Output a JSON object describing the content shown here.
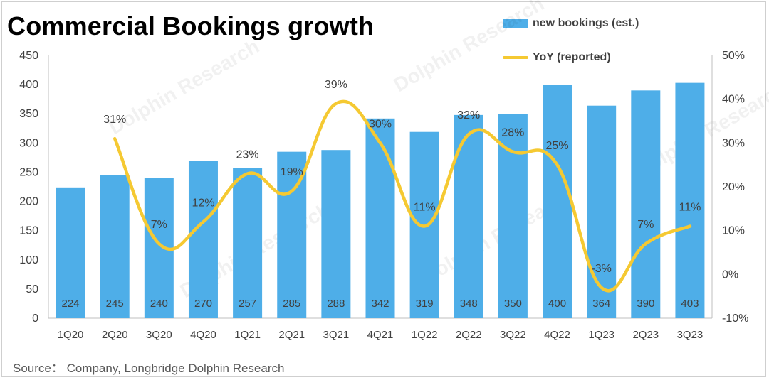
{
  "title": "Commercial Bookings growth",
  "source": "Source：  Company, Longbridge Dolphin Research",
  "legend": {
    "bar_label": "new bookings (est.)",
    "line_label": "YoY  (reported)"
  },
  "colors": {
    "bar": "#4eaee8",
    "line": "#f5c932"
  },
  "chart_data": {
    "type": "bar",
    "categories": [
      "1Q20",
      "2Q20",
      "3Q20",
      "4Q20",
      "1Q21",
      "2Q21",
      "3Q21",
      "4Q21",
      "1Q22",
      "2Q22",
      "3Q22",
      "4Q22",
      "1Q23",
      "2Q23",
      "3Q23"
    ],
    "series": [
      {
        "name": "new bookings (est.)",
        "type": "bar",
        "axis": "left",
        "values": [
          224,
          245,
          240,
          270,
          257,
          285,
          288,
          342,
          319,
          348,
          350,
          400,
          364,
          390,
          403
        ],
        "labels": [
          "224",
          "245",
          "240",
          "270",
          "257",
          "285",
          "288",
          "342",
          "319",
          "348",
          "350",
          "400",
          "364",
          "390",
          "403"
        ]
      },
      {
        "name": "YoY  (reported)",
        "type": "line",
        "axis": "right",
        "values": [
          null,
          31,
          7,
          12,
          23,
          19,
          39,
          30,
          11,
          32,
          28,
          25,
          -3,
          7,
          11
        ],
        "labels": [
          "",
          "31%",
          "7%",
          "12%",
          "23%",
          "19%",
          "39%",
          "30%",
          "11%",
          "32%",
          "28%",
          "25%",
          "-3%",
          "7%",
          "11%"
        ]
      }
    ],
    "y_left": {
      "ylim": [
        0,
        450
      ],
      "ticks": [
        0,
        50,
        100,
        150,
        200,
        250,
        300,
        350,
        400,
        450
      ]
    },
    "y_right": {
      "ylim": [
        -10,
        50
      ],
      "ticks": [
        "-10%",
        "0%",
        "10%",
        "20%",
        "30%",
        "40%",
        "50%"
      ]
    },
    "legend_position": "top-right",
    "grid": false
  }
}
